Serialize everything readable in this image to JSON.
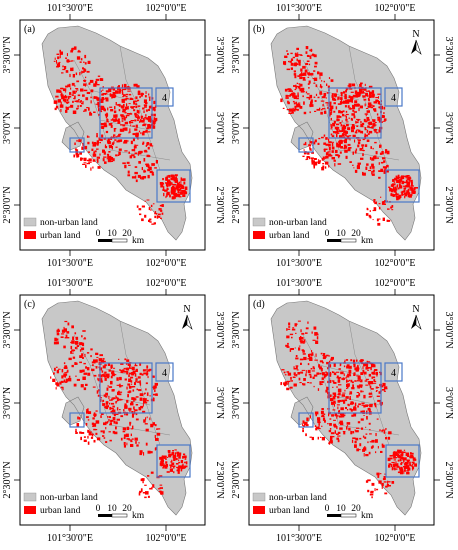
{
  "coords": {
    "top": [
      "101°30'0\"E",
      "102°0'0\"E"
    ],
    "bottom": [
      "101°30'0\"E",
      "102°0'0\"E"
    ],
    "left": [
      "3°30'0\"N",
      "3°0'0\"N",
      "2°30'0\"N"
    ],
    "right": [
      "3°30'0\"N",
      "3°0'0\"N",
      "2°30'0\"N"
    ]
  },
  "legend": {
    "non_urban": "non-urban land",
    "urban": "urban land"
  },
  "scale": {
    "ticks": [
      "0",
      "10",
      "20"
    ],
    "unit": "km"
  },
  "north_label": "N",
  "box_label": "4",
  "colors": {
    "non_urban": "#c8c8c8",
    "urban": "#ff0000",
    "highlight_box": "#4a78c8",
    "frame": "#000000"
  },
  "panels": [
    {
      "id": "a",
      "label": "(a)",
      "show_north": false,
      "urban_density": 1.0
    },
    {
      "id": "b",
      "label": "(b)",
      "show_north": true,
      "urban_density": 1.1
    },
    {
      "id": "c",
      "label": "(c)",
      "show_north": true,
      "urban_density": 0.8
    },
    {
      "id": "d",
      "label": "(d)",
      "show_north": true,
      "urban_density": 0.9
    }
  ]
}
